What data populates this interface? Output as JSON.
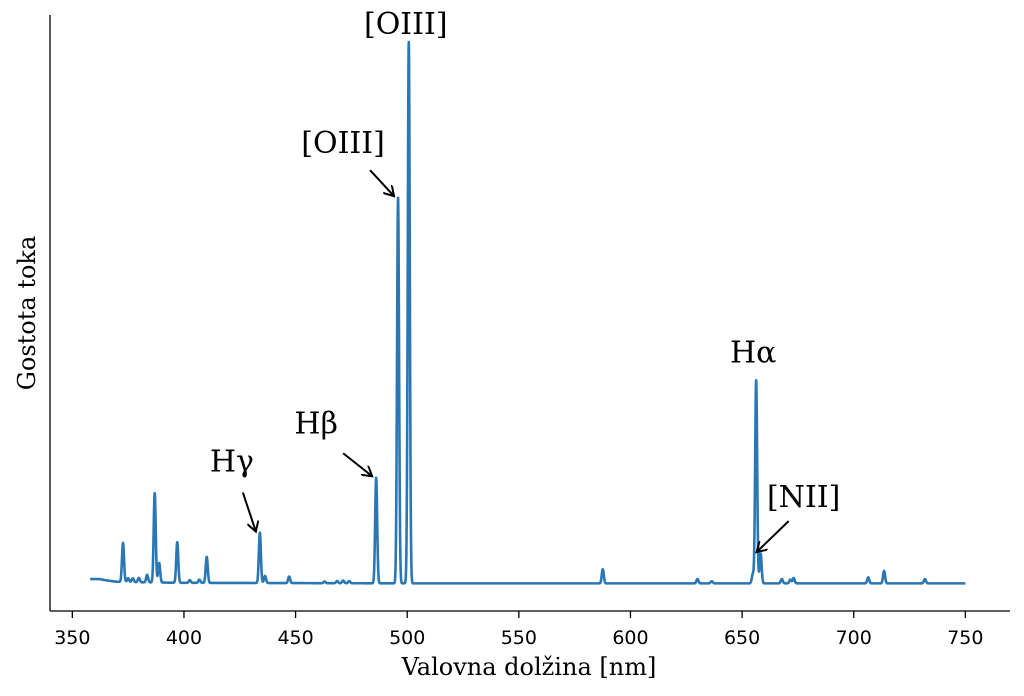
{
  "chart_data": {
    "type": "line",
    "title": "",
    "xlabel": "Valovna dolžina [nm]",
    "ylabel": "Gostota toka",
    "xlim": [
      340,
      770
    ],
    "ylim": [
      -0.05,
      1.05
    ],
    "xticks": [
      350,
      400,
      450,
      500,
      550,
      600,
      650,
      700,
      750
    ],
    "xtick_labels": [
      "350",
      "400",
      "450",
      "500",
      "550",
      "600",
      "650",
      "700",
      "750"
    ],
    "yticks_shown": false,
    "grid": false,
    "line_color": "#2a77b4",
    "series": [
      {
        "continuum": [
          [
            358,
            0.009
          ],
          [
            362,
            0.009
          ],
          [
            366,
            0.006
          ],
          [
            370,
            0.004
          ],
          [
            380,
            0.003
          ],
          [
            400,
            0.002
          ],
          [
            500,
            0.001
          ],
          [
            600,
            0.001
          ],
          [
            750,
            0.001
          ]
        ],
        "lines": [
          {
            "center": 372.7,
            "height": 0.072
          },
          {
            "center": 375.0,
            "height": 0.007
          },
          {
            "center": 377.1,
            "height": 0.007
          },
          {
            "center": 379.8,
            "height": 0.008
          },
          {
            "center": 383.5,
            "height": 0.014
          },
          {
            "center": 386.9,
            "height": 0.165
          },
          {
            "center": 388.9,
            "height": 0.036
          },
          {
            "center": 397.0,
            "height": 0.075
          },
          {
            "center": 402.6,
            "height": 0.005
          },
          {
            "center": 406.9,
            "height": 0.006
          },
          {
            "center": 410.2,
            "height": 0.048
          },
          {
            "center": 434.0,
            "height": 0.093
          },
          {
            "center": 436.3,
            "height": 0.013
          },
          {
            "center": 447.1,
            "height": 0.012
          },
          {
            "center": 463.0,
            "height": 0.003
          },
          {
            "center": 468.6,
            "height": 0.004
          },
          {
            "center": 471.3,
            "height": 0.005
          },
          {
            "center": 474.0,
            "height": 0.004
          },
          {
            "center": 486.1,
            "height": 0.195
          },
          {
            "center": 495.9,
            "height": 0.712
          },
          {
            "center": 500.7,
            "height": 1.0
          },
          {
            "center": 587.6,
            "height": 0.026
          },
          {
            "center": 630.0,
            "height": 0.008
          },
          {
            "center": 636.4,
            "height": 0.004
          },
          {
            "center": 654.8,
            "height": 0.017
          },
          {
            "center": 656.3,
            "height": 0.375
          },
          {
            "center": 658.3,
            "height": 0.055
          },
          {
            "center": 667.8,
            "height": 0.008
          },
          {
            "center": 671.6,
            "height": 0.007
          },
          {
            "center": 673.1,
            "height": 0.01
          },
          {
            "center": 706.5,
            "height": 0.011
          },
          {
            "center": 713.6,
            "height": 0.023
          },
          {
            "center": 731.9,
            "height": 0.008
          }
        ]
      }
    ],
    "annotations": [
      {
        "text": "[OIII]",
        "target_x": 500.7,
        "target_y": 1.0,
        "arrow": false
      },
      {
        "text": "[OIII]",
        "target_x": 495.9,
        "target_y": 0.712,
        "arrow": true
      },
      {
        "text": "Hα",
        "target_x": 656.3,
        "target_y": 0.375,
        "arrow": false
      },
      {
        "text": "Hβ",
        "target_x": 486.1,
        "target_y": 0.195,
        "arrow": true
      },
      {
        "text": "Hγ",
        "target_x": 434.0,
        "target_y": 0.093,
        "arrow": true
      },
      {
        "text": "[NII]",
        "target_x": 658.3,
        "target_y": 0.055,
        "arrow": true
      }
    ]
  }
}
